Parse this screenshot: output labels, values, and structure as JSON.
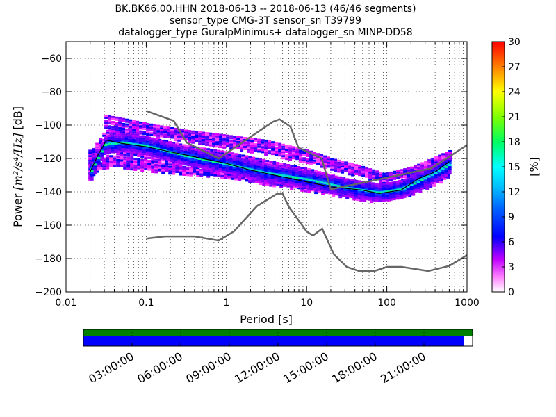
{
  "title": {
    "line1": "BK.BK66.00.HHN   2018-06-13 -- 2018-06-13  (46/46 segments)",
    "line2": "sensor_type CMG-3T sensor_sn T39799",
    "line3": "datalogger_type GuralpMinimus+ datalogger_sn MINP-DD58"
  },
  "chart_data": [
    {
      "type": "heatmap",
      "title": "",
      "xlabel": "Period [s]",
      "ylabel": "Power [m²/s⁴/Hz] [dB]",
      "ylabel_prefix": "Power ",
      "ylabel_math": "[m²/s⁴/Hz]",
      "ylabel_suffix": " [dB]",
      "x_scale": "log",
      "xlim": [
        0.01,
        1000
      ],
      "ylim": [
        -200,
        -50
      ],
      "x_ticks": [
        0.01,
        0.1,
        1,
        10,
        100,
        1000
      ],
      "x_tick_labels": [
        "0.01",
        "0.1",
        "1",
        "10",
        "100",
        "1000"
      ],
      "y_ticks": [
        -200,
        -180,
        -160,
        -140,
        -120,
        -100,
        -80,
        -60
      ],
      "y_tick_labels": [
        "−200",
        "−180",
        "−160",
        "−140",
        "−120",
        "−100",
        "−80",
        "−60"
      ],
      "grid": true,
      "colorbar": {
        "label": "[%]",
        "range": [
          0,
          30
        ],
        "ticks": [
          0,
          3,
          6,
          9,
          12,
          15,
          18,
          21,
          24,
          27,
          30
        ],
        "tick_labels": [
          "0",
          "3",
          "6",
          "9",
          "12",
          "15",
          "18",
          "21",
          "24",
          "27",
          "30"
        ],
        "colormap": "pqlx"
      },
      "noise_models": [
        {
          "name": "NHNM",
          "color": "#666666",
          "points": [
            [
              0.1,
              -91.5
            ],
            [
              0.22,
              -97.4
            ],
            [
              0.32,
              -110.5
            ],
            [
              0.8,
              -120
            ],
            [
              3.8,
              -98
            ],
            [
              4.6,
              -96.5
            ],
            [
              6.3,
              -101
            ],
            [
              7.9,
              -113.5
            ],
            [
              15.4,
              -120
            ],
            [
              20,
              -138.5
            ],
            [
              354,
              -126
            ],
            [
              1000,
              -112
            ]
          ]
        },
        {
          "name": "NLNM",
          "color": "#666666",
          "points": [
            [
              0.1,
              -168
            ],
            [
              0.17,
              -166.7
            ],
            [
              0.4,
              -166.7
            ],
            [
              0.8,
              -169.2
            ],
            [
              1.24,
              -163.7
            ],
            [
              2.4,
              -148.6
            ],
            [
              4.3,
              -141.1
            ],
            [
              5,
              -141.1
            ],
            [
              6,
              -149
            ],
            [
              10,
              -163.8
            ],
            [
              12,
              -166.2
            ],
            [
              15.6,
              -162.1
            ],
            [
              21.9,
              -177.5
            ],
            [
              31.6,
              -185
            ],
            [
              45,
              -187.5
            ],
            [
              70,
              -187.5
            ],
            [
              101,
              -185
            ],
            [
              154,
              -185
            ],
            [
              328,
              -187.5
            ],
            [
              600,
              -184.4
            ],
            [
              1000,
              -178
            ]
          ]
        }
      ],
      "mean_curve": {
        "color": "#000000",
        "points": [
          [
            0.02,
            -128
          ],
          [
            0.025,
            -118
          ],
          [
            0.032,
            -109
          ],
          [
            0.05,
            -111
          ],
          [
            0.1,
            -113
          ],
          [
            0.2,
            -116
          ],
          [
            0.5,
            -120
          ],
          [
            1,
            -123
          ],
          [
            2,
            -127
          ],
          [
            5,
            -131
          ],
          [
            10,
            -134
          ],
          [
            20,
            -137
          ],
          [
            50,
            -139
          ],
          [
            80,
            -141
          ],
          [
            150,
            -139
          ],
          [
            250,
            -132
          ],
          [
            400,
            -128
          ],
          [
            600,
            -122
          ]
        ]
      },
      "mode_curve": {
        "color": "#00d0d0",
        "points": [
          [
            0.02,
            -127
          ],
          [
            0.03,
            -111
          ],
          [
            0.05,
            -110
          ],
          [
            0.1,
            -112
          ],
          [
            0.3,
            -118
          ],
          [
            1,
            -123
          ],
          [
            3,
            -128
          ],
          [
            10,
            -132
          ],
          [
            30,
            -137
          ],
          [
            80,
            -140
          ],
          [
            150,
            -138
          ],
          [
            300,
            -131
          ],
          [
            600,
            -123
          ]
        ]
      },
      "psd_curves": [
        [
          [
            0.019,
            -124
          ],
          [
            0.03,
            -112
          ],
          [
            0.05,
            -112
          ],
          [
            0.1,
            -115
          ],
          [
            0.3,
            -120
          ],
          [
            1,
            -124
          ],
          [
            3,
            -129
          ],
          [
            10,
            -133
          ],
          [
            30,
            -137
          ],
          [
            80,
            -140
          ],
          [
            200,
            -136
          ],
          [
            600,
            -126
          ]
        ],
        [
          [
            0.019,
            -120
          ],
          [
            0.03,
            -108
          ],
          [
            0.05,
            -109
          ],
          [
            0.1,
            -112
          ],
          [
            0.3,
            -117
          ],
          [
            1,
            -121
          ],
          [
            3,
            -126
          ],
          [
            10,
            -130
          ],
          [
            30,
            -135
          ],
          [
            80,
            -139
          ],
          [
            200,
            -134
          ],
          [
            600,
            -124
          ]
        ],
        [
          [
            0.019,
            -128
          ],
          [
            0.03,
            -115
          ],
          [
            0.05,
            -116
          ],
          [
            0.1,
            -119
          ],
          [
            0.3,
            -123
          ],
          [
            1,
            -127
          ],
          [
            3,
            -132
          ],
          [
            10,
            -136
          ],
          [
            30,
            -140
          ],
          [
            80,
            -143
          ],
          [
            200,
            -138
          ],
          [
            600,
            -128
          ]
        ],
        [
          [
            0.019,
            -132
          ],
          [
            0.03,
            -119
          ],
          [
            0.05,
            -120
          ],
          [
            0.1,
            -122
          ],
          [
            0.3,
            -126
          ],
          [
            1,
            -130
          ],
          [
            3,
            -134
          ],
          [
            10,
            -138
          ],
          [
            30,
            -142
          ],
          [
            80,
            -145
          ],
          [
            200,
            -140
          ],
          [
            600,
            -130
          ]
        ],
        [
          [
            0.019,
            -118
          ],
          [
            0.03,
            -104
          ],
          [
            0.05,
            -105
          ],
          [
            0.1,
            -108
          ],
          [
            0.3,
            -113
          ],
          [
            1,
            -117
          ],
          [
            3,
            -122
          ],
          [
            10,
            -127
          ],
          [
            30,
            -133
          ],
          [
            80,
            -137
          ],
          [
            200,
            -132
          ],
          [
            600,
            -121
          ]
        ],
        [
          [
            0.019,
            -122
          ],
          [
            0.03,
            -110
          ],
          [
            0.05,
            -111
          ],
          [
            0.1,
            -114
          ],
          [
            0.3,
            -119
          ],
          [
            1,
            -122
          ],
          [
            3,
            -127
          ],
          [
            10,
            -132
          ],
          [
            30,
            -136
          ],
          [
            80,
            -139
          ],
          [
            200,
            -133
          ],
          [
            600,
            -122
          ]
        ],
        [
          [
            0.03,
            -95
          ],
          [
            0.05,
            -97
          ],
          [
            0.1,
            -100
          ],
          [
            0.3,
            -104
          ],
          [
            1,
            -107
          ],
          [
            3,
            -110
          ],
          [
            10,
            -116
          ],
          [
            20,
            -121
          ],
          [
            50,
            -126
          ],
          [
            90,
            -130
          ],
          [
            200,
            -126
          ],
          [
            600,
            -116
          ]
        ],
        [
          [
            0.03,
            -98
          ],
          [
            0.05,
            -100
          ],
          [
            0.1,
            -102
          ],
          [
            0.3,
            -106
          ],
          [
            1,
            -110
          ],
          [
            3,
            -113
          ],
          [
            10,
            -118
          ],
          [
            20,
            -123
          ],
          [
            50,
            -128
          ],
          [
            90,
            -132
          ],
          [
            200,
            -128
          ],
          [
            600,
            -118
          ]
        ],
        [
          [
            0.03,
            -101
          ],
          [
            0.05,
            -103
          ],
          [
            0.1,
            -105
          ],
          [
            0.3,
            -108
          ],
          [
            1,
            -112
          ],
          [
            3,
            -116
          ],
          [
            10,
            -121
          ],
          [
            20,
            -125
          ],
          [
            50,
            -130
          ],
          [
            90,
            -133
          ],
          [
            200,
            -129
          ],
          [
            600,
            -120
          ]
        ],
        [
          [
            0.019,
            -126
          ],
          [
            0.03,
            -124
          ],
          [
            0.05,
            -124
          ],
          [
            0.1,
            -126
          ],
          [
            0.3,
            -128
          ],
          [
            1,
            -130
          ],
          [
            3,
            -133
          ],
          [
            10,
            -136
          ],
          [
            30,
            -139
          ],
          [
            80,
            -142
          ],
          [
            200,
            -136
          ],
          [
            600,
            -125
          ]
        ],
        [
          [
            0.019,
            -116
          ],
          [
            0.03,
            -113
          ],
          [
            0.05,
            -114
          ],
          [
            0.1,
            -117
          ],
          [
            0.3,
            -121
          ],
          [
            1,
            -125
          ],
          [
            3,
            -130
          ],
          [
            10,
            -134
          ],
          [
            30,
            -138
          ],
          [
            80,
            -141
          ],
          [
            200,
            -137
          ],
          [
            600,
            -127
          ]
        ],
        [
          [
            0.019,
            -130
          ],
          [
            0.03,
            -121
          ],
          [
            0.05,
            -122
          ],
          [
            0.1,
            -124
          ],
          [
            0.3,
            -127
          ],
          [
            1,
            -129
          ],
          [
            3,
            -131
          ],
          [
            10,
            -134
          ],
          [
            30,
            -138
          ],
          [
            80,
            -141
          ],
          [
            200,
            -135
          ],
          [
            600,
            -125
          ]
        ]
      ],
      "notes": "Probabilistic power spectral density histogram with percentage colorbar"
    },
    {
      "type": "timeline",
      "ticks": [
        "03:00:00",
        "06:00:00",
        "09:00:00",
        "12:00:00",
        "15:00:00",
        "18:00:00",
        "21:00:00"
      ],
      "range_hours": [
        0,
        24
      ],
      "rows": [
        {
          "name": "",
          "color": "#008000",
          "segments": [
            [
              0,
              24
            ]
          ]
        },
        {
          "name": "",
          "color": "#0000ff",
          "segments": [
            [
              0,
              23.45
            ]
          ]
        }
      ]
    }
  ]
}
